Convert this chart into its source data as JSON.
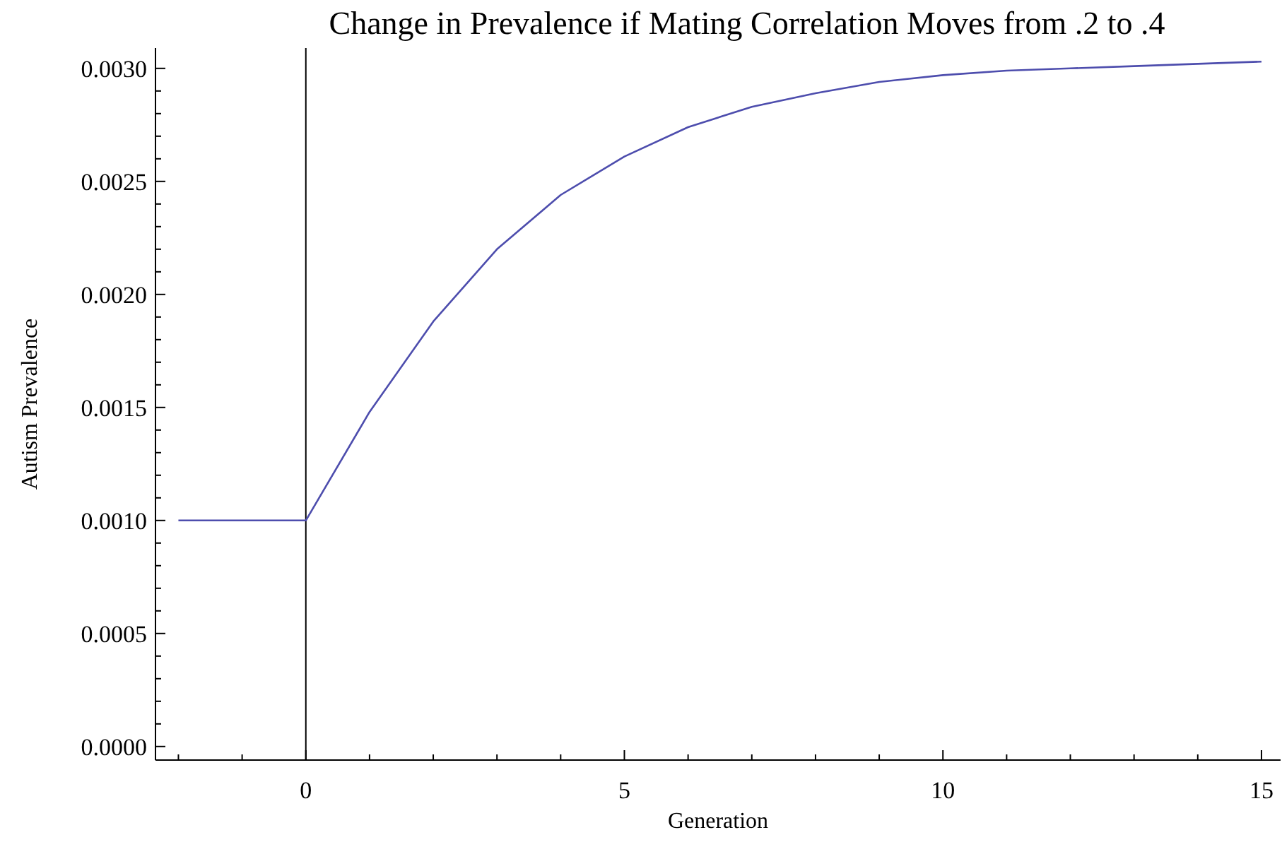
{
  "chart_data": {
    "type": "line",
    "title": "Change in Prevalence if Mating Correlation Moves from .2 to .4",
    "xlabel": "Generation",
    "ylabel": "Autism Prevalence",
    "x": [
      -2,
      -1,
      0,
      1,
      2,
      3,
      4,
      5,
      6,
      7,
      8,
      9,
      10,
      11,
      12,
      13,
      14,
      15
    ],
    "series": [
      {
        "color": "#4d4dad",
        "values": [
          0.001,
          0.001,
          0.001,
          0.00148,
          0.00188,
          0.0022,
          0.00244,
          0.00261,
          0.00274,
          0.00283,
          0.00289,
          0.00294,
          0.00297,
          0.00299,
          0.003,
          0.00301,
          0.00302,
          0.00303
        ]
      }
    ],
    "xlim": [
      -2.36,
      15.3
    ],
    "ylim": [
      -6e-05,
      0.00309
    ],
    "xticks": [
      {
        "value": -2,
        "label": null
      },
      {
        "value": -1,
        "label": null
      },
      0,
      {
        "value": 1,
        "label": null
      },
      {
        "value": 2,
        "label": null
      },
      {
        "value": 3,
        "label": null
      },
      {
        "value": 4,
        "label": null
      },
      5,
      {
        "value": 6,
        "label": null
      },
      {
        "value": 7,
        "label": null
      },
      {
        "value": 8,
        "label": null
      },
      {
        "value": 9,
        "label": null
      },
      10,
      {
        "value": 11,
        "label": null
      },
      {
        "value": 12,
        "label": null
      },
      {
        "value": 13,
        "label": null
      },
      {
        "value": 14,
        "label": null
      },
      15
    ],
    "yticks": [
      {
        "value": 0,
        "label": "0.0000"
      },
      {
        "value": 0.0001,
        "label": null
      },
      {
        "value": 0.0002,
        "label": null
      },
      {
        "value": 0.0003,
        "label": null
      },
      {
        "value": 0.0004,
        "label": null
      },
      {
        "value": 0.0005,
        "label": "0.0005"
      },
      {
        "value": 0.0006,
        "label": null
      },
      {
        "value": 0.0007,
        "label": null
      },
      {
        "value": 0.0008,
        "label": null
      },
      {
        "value": 0.0009,
        "label": null
      },
      {
        "value": 0.001,
        "label": "0.0010"
      },
      {
        "value": 0.0011,
        "label": null
      },
      {
        "value": 0.0012,
        "label": null
      },
      {
        "value": 0.0013,
        "label": null
      },
      {
        "value": 0.0014,
        "label": null
      },
      {
        "value": 0.0015,
        "label": "0.0015"
      },
      {
        "value": 0.0016,
        "label": null
      },
      {
        "value": 0.0017,
        "label": null
      },
      {
        "value": 0.0018,
        "label": null
      },
      {
        "value": 0.0019,
        "label": null
      },
      {
        "value": 0.002,
        "label": "0.0020"
      },
      {
        "value": 0.0021,
        "label": null
      },
      {
        "value": 0.0022,
        "label": null
      },
      {
        "value": 0.0023,
        "label": null
      },
      {
        "value": 0.0024,
        "label": null
      },
      {
        "value": 0.0025,
        "label": "0.0025"
      },
      {
        "value": 0.0026,
        "label": null
      },
      {
        "value": 0.0027,
        "label": null
      },
      {
        "value": 0.0028,
        "label": null
      },
      {
        "value": 0.0029,
        "label": null
      },
      {
        "value": 0.003,
        "label": "0.0030"
      }
    ],
    "ref_lines": [
      {
        "axis": "x",
        "value": 0,
        "color": "#000000"
      }
    ],
    "grid": false,
    "marker": "none",
    "line_style": "solid"
  }
}
